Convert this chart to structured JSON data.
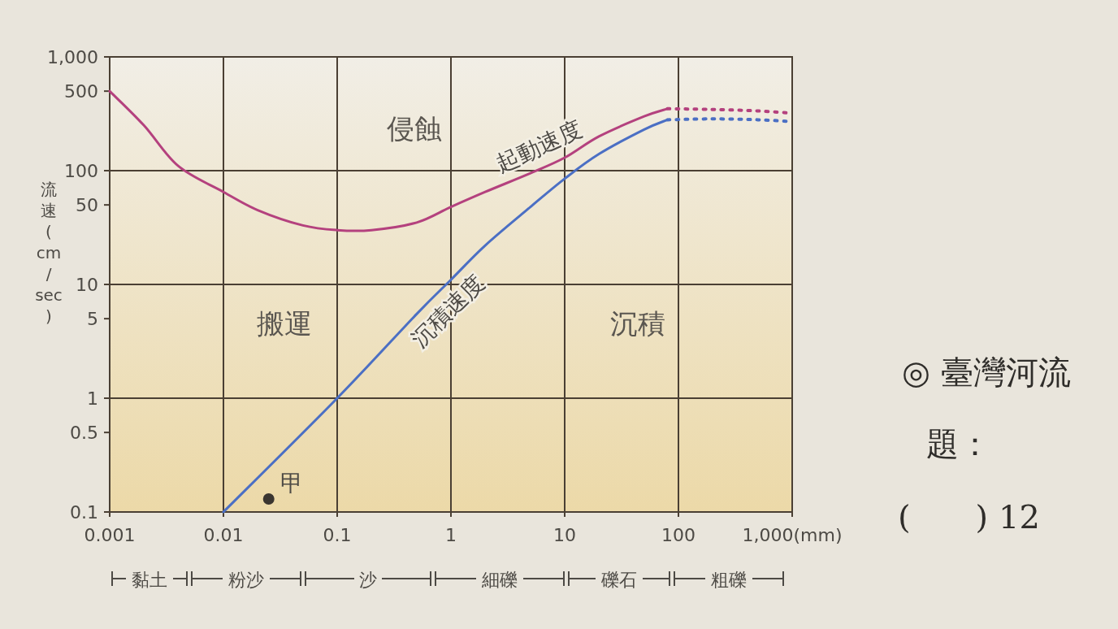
{
  "chart_data": {
    "type": "line",
    "ylabel": "流速(cm/sec)",
    "log": "xy",
    "grid": true,
    "xlim": [
      0.001,
      1000
    ],
    "ylim": [
      0.1,
      1000
    ],
    "xticks": [
      0.001,
      0.01,
      0.1,
      1,
      10,
      100,
      {
        "value": 1000,
        "label": "1,000(mm)"
      }
    ],
    "yticks": [
      0.1,
      0.5,
      1,
      5,
      10,
      50,
      100,
      500,
      {
        "value": 1000,
        "label": "1,000"
      }
    ],
    "series": [
      {
        "name": "起動速度",
        "color": "#b4417e",
        "x": [
          0.001,
          0.002,
          0.004,
          0.01,
          0.02,
          0.05,
          0.1,
          0.2,
          0.5,
          1,
          2,
          5,
          10,
          20,
          50,
          80
        ],
        "values": [
          500,
          250,
          110,
          65,
          45,
          33,
          30,
          30,
          35,
          48,
          65,
          95,
          130,
          200,
          300,
          350
        ]
      },
      {
        "color": "#b4417e",
        "line_style": "dotted",
        "x": [
          80,
          200,
          500,
          1000
        ],
        "values": [
          350,
          345,
          335,
          320
        ]
      },
      {
        "name": "沉積速度",
        "color": "#4b6fc4",
        "x": [
          0.01,
          0.1,
          0.5,
          1,
          2,
          5,
          10,
          20,
          50,
          80
        ],
        "values": [
          0.1,
          1,
          5.5,
          11,
          22,
          48,
          85,
          140,
          230,
          280
        ]
      },
      {
        "color": "#4b6fc4",
        "line_style": "dotted",
        "x": [
          80,
          200,
          500,
          1000
        ],
        "values": [
          280,
          285,
          280,
          270
        ]
      },
      {
        "name": "甲",
        "type": "scatter",
        "marker": "circle",
        "color": "#3a3530",
        "x": [
          0.025
        ],
        "values": [
          0.13
        ]
      }
    ],
    "annotations": [
      "侵蝕",
      "搬運",
      "沉積",
      "◎ 臺灣河流",
      "題：",
      "(　　) 12",
      "黏土",
      "粉沙",
      "沙",
      "細礫",
      "礫石",
      "粗礫"
    ]
  }
}
